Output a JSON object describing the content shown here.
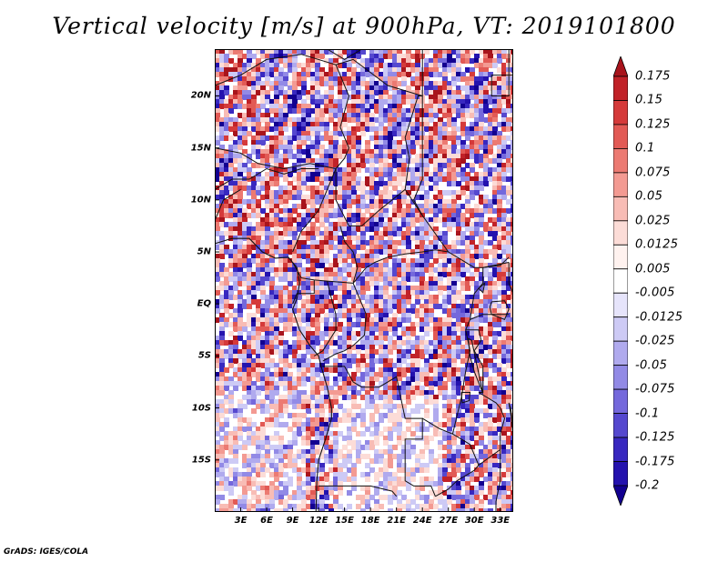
{
  "title": "Vertical velocity [m/s] at 900hPa, VT: 2019101800",
  "credit": "GrADS: IGES/COLA",
  "map": {
    "variable": "Vertical velocity",
    "units": "m/s",
    "level": "900hPa",
    "valid_time": "2019101800",
    "lat_range": [
      -20,
      24.5
    ],
    "lon_range": [
      0,
      34.5
    ],
    "lat_ticks": [
      {
        "value": 20,
        "label": "20N"
      },
      {
        "value": 15,
        "label": "15N"
      },
      {
        "value": 10,
        "label": "10N"
      },
      {
        "value": 5,
        "label": "5N"
      },
      {
        "value": 0,
        "label": "EQ"
      },
      {
        "value": -5,
        "label": "5S"
      },
      {
        "value": -10,
        "label": "10S"
      },
      {
        "value": -15,
        "label": "15S"
      }
    ],
    "lon_ticks": [
      {
        "value": 3,
        "label": "3E"
      },
      {
        "value": 6,
        "label": "6E"
      },
      {
        "value": 9,
        "label": "9E"
      },
      {
        "value": 12,
        "label": "12E"
      },
      {
        "value": 15,
        "label": "15E"
      },
      {
        "value": 18,
        "label": "18E"
      },
      {
        "value": 21,
        "label": "21E"
      },
      {
        "value": 24,
        "label": "24E"
      },
      {
        "value": 27,
        "label": "27E"
      },
      {
        "value": 30,
        "label": "30E"
      },
      {
        "value": 33,
        "label": "33E"
      }
    ]
  },
  "colorbar": {
    "levels": [
      "0.175",
      "0.15",
      "0.125",
      "0.1",
      "0.075",
      "0.05",
      "0.025",
      "0.0125",
      "0.005",
      "-0.005",
      "-0.0125",
      "-0.025",
      "-0.05",
      "-0.075",
      "-0.1",
      "-0.125",
      "-0.175",
      "-0.2"
    ],
    "colors": [
      "#a8141c",
      "#c12228",
      "#d53a3a",
      "#e25a55",
      "#ec7a72",
      "#f39a92",
      "#f8bcb5",
      "#fcdcd7",
      "#fff2ef",
      "#ffffff",
      "#e6e4fb",
      "#cdcaf5",
      "#b0aaee",
      "#928ae6",
      "#7468dc",
      "#5548cf",
      "#3828c0",
      "#2412ae",
      "#120090"
    ]
  }
}
